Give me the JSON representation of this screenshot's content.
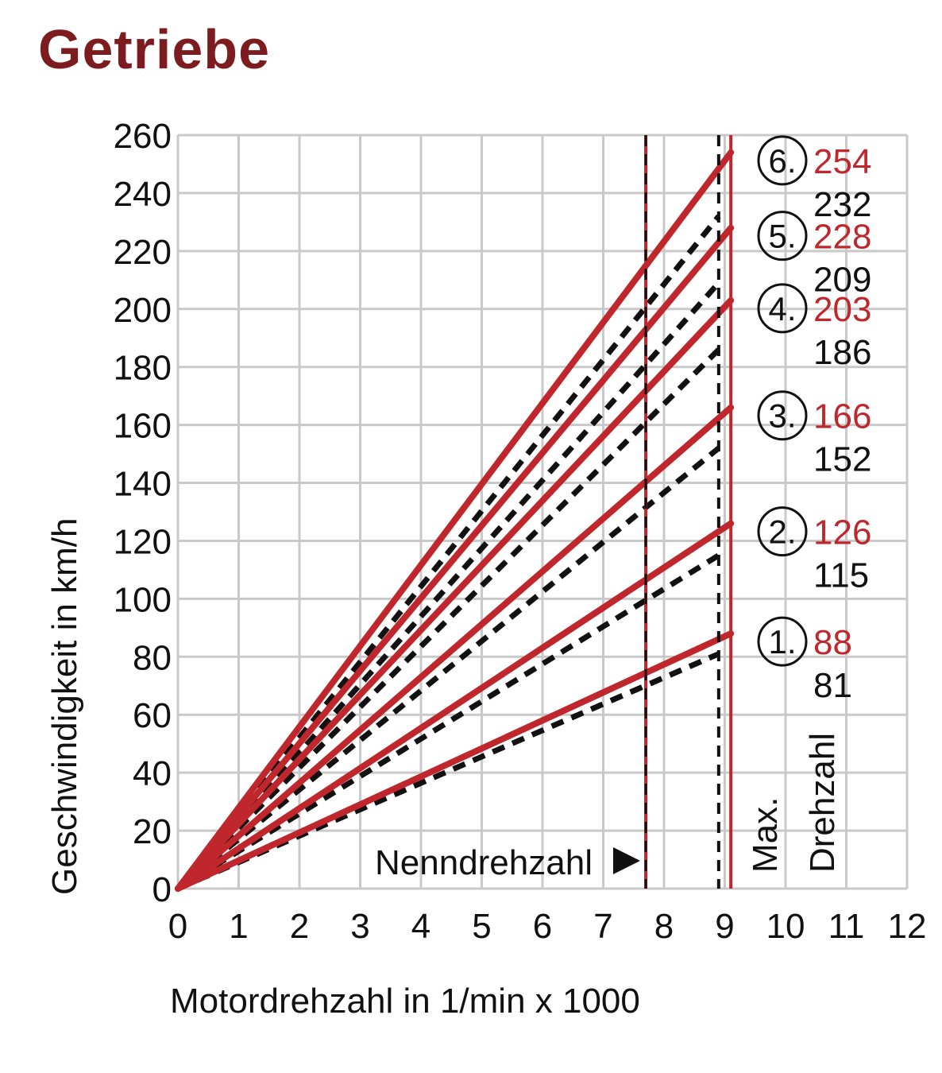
{
  "title": "Getriebe",
  "colors": {
    "accent": "#c0272d",
    "title": "#7d1c1f",
    "grid": "#c9c9c9",
    "ink": "#111111"
  },
  "chart_data": {
    "type": "line",
    "xlabel": "Motordrehzahl in 1/min x 1000",
    "ylabel": "Geschwindigkeit in km/h",
    "xlim": [
      0,
      12
    ],
    "ylim": [
      0,
      260
    ],
    "x_ticks": [
      "0",
      "1",
      "2",
      "3",
      "4",
      "5",
      "6",
      "7",
      "8",
      "9",
      "10",
      "11",
      "12"
    ],
    "y_ticks": [
      "0",
      "20",
      "40",
      "60",
      "80",
      "100",
      "120",
      "140",
      "160",
      "180",
      "200",
      "220",
      "240",
      "260"
    ],
    "grid": true,
    "vlines": [
      {
        "x": 7.7,
        "style": "dashed-red-black",
        "label": "Nenndrehzahl"
      },
      {
        "x": 8.9,
        "style": "dashed-black"
      },
      {
        "x": 9.1,
        "style": "solid-red",
        "label_line1": "Max.",
        "label_line2": "Drehzahl"
      }
    ],
    "series": [
      {
        "gear": "1.",
        "style": "solid-red",
        "end_x": 9.1,
        "end_y": 88
      },
      {
        "gear": "1.",
        "style": "dashed-black",
        "end_x": 8.9,
        "end_y": 81
      },
      {
        "gear": "2.",
        "style": "solid-red",
        "end_x": 9.1,
        "end_y": 126
      },
      {
        "gear": "2.",
        "style": "dashed-black",
        "end_x": 8.9,
        "end_y": 115
      },
      {
        "gear": "3.",
        "style": "solid-red",
        "end_x": 9.1,
        "end_y": 166
      },
      {
        "gear": "3.",
        "style": "dashed-black",
        "end_x": 8.9,
        "end_y": 152
      },
      {
        "gear": "4.",
        "style": "solid-red",
        "end_x": 9.1,
        "end_y": 203
      },
      {
        "gear": "4.",
        "style": "dashed-black",
        "end_x": 8.9,
        "end_y": 186
      },
      {
        "gear": "5.",
        "style": "solid-red",
        "end_x": 9.1,
        "end_y": 228
      },
      {
        "gear": "5.",
        "style": "dashed-black",
        "end_x": 8.9,
        "end_y": 209
      },
      {
        "gear": "6.",
        "style": "solid-red",
        "end_x": 9.1,
        "end_y": 254
      },
      {
        "gear": "6.",
        "style": "dashed-black",
        "end_x": 8.9,
        "end_y": 232
      }
    ],
    "gear_labels": [
      {
        "gear": "6.",
        "red": "254",
        "black": "232"
      },
      {
        "gear": "5.",
        "red": "228",
        "black": "209"
      },
      {
        "gear": "4.",
        "red": "203",
        "black": "186"
      },
      {
        "gear": "3.",
        "red": "166",
        "black": "152"
      },
      {
        "gear": "2.",
        "red": "126",
        "black": "115"
      },
      {
        "gear": "1.",
        "red": "88",
        "black": "81"
      }
    ]
  }
}
